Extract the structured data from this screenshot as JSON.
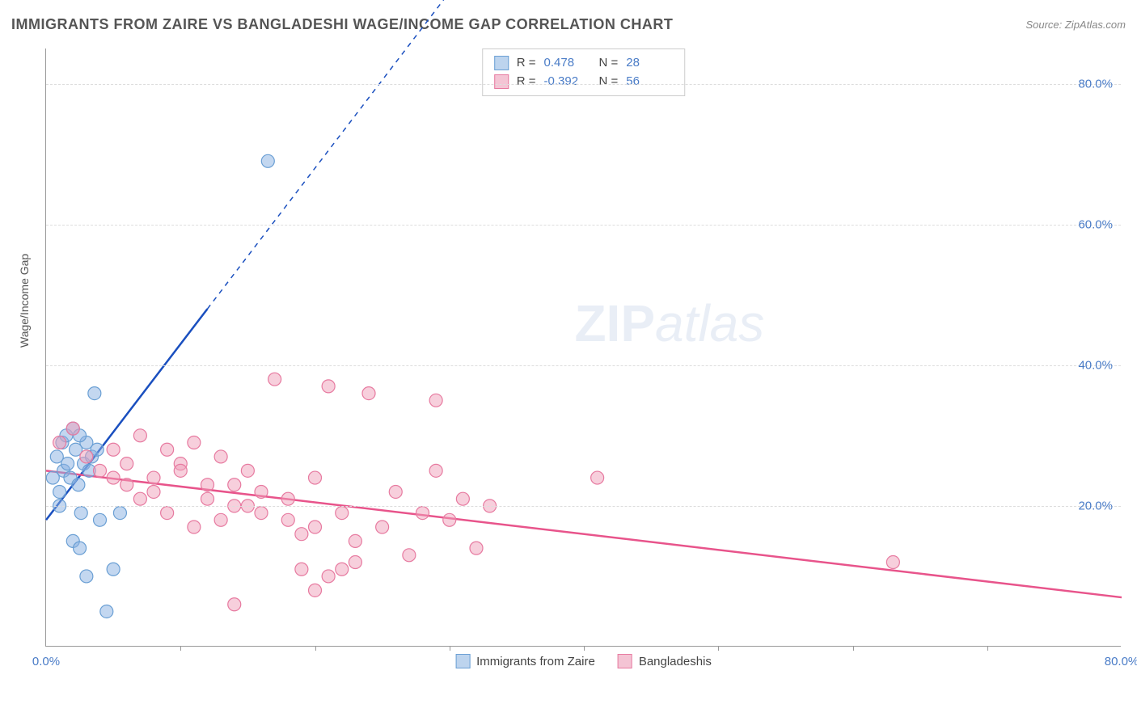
{
  "header": {
    "title": "IMMIGRANTS FROM ZAIRE VS BANGLADESHI WAGE/INCOME GAP CORRELATION CHART",
    "source_prefix": "Source: ",
    "source_name": "ZipAtlas.com"
  },
  "chart": {
    "type": "scatter",
    "ylabel": "Wage/Income Gap",
    "xlim": [
      0,
      80
    ],
    "ylim": [
      0,
      85
    ],
    "y_ticks": [
      20.0,
      40.0,
      60.0,
      80.0
    ],
    "y_tick_labels": [
      "20.0%",
      "40.0%",
      "60.0%",
      "80.0%"
    ],
    "x_ticks": [
      0.0,
      80.0
    ],
    "x_tick_labels": [
      "0.0%",
      "80.0%"
    ],
    "x_tick_marks": [
      10,
      20,
      30,
      40,
      50,
      60,
      70
    ],
    "grid_color": "#dddddd",
    "axis_color": "#999999",
    "background": "#ffffff",
    "watermark": "ZIPatlas",
    "series": [
      {
        "name": "Immigrants from Zaire",
        "color_fill": "rgba(135,175,225,0.5)",
        "color_stroke": "#6a9fd4",
        "swatch_fill": "#bdd4ee",
        "swatch_border": "#6a9fd4",
        "marker_radius": 8,
        "R": "0.478",
        "N": "28",
        "trend": {
          "x1": 0,
          "y1": 18,
          "x2": 12,
          "y2": 48,
          "x2_ext": 30,
          "y2_ext": 93,
          "color": "#1a4fbf",
          "width": 2.5
        },
        "points": [
          [
            0.5,
            24
          ],
          [
            0.8,
            27
          ],
          [
            1.0,
            22
          ],
          [
            1.2,
            29
          ],
          [
            1.3,
            25
          ],
          [
            1.5,
            30
          ],
          [
            1.6,
            26
          ],
          [
            1.8,
            24
          ],
          [
            2.0,
            31
          ],
          [
            2.2,
            28
          ],
          [
            2.4,
            23
          ],
          [
            2.6,
            19
          ],
          [
            2.8,
            26
          ],
          [
            3.0,
            29
          ],
          [
            3.2,
            25
          ],
          [
            3.4,
            27
          ],
          [
            3.6,
            36
          ],
          [
            2.0,
            15
          ],
          [
            3.0,
            10
          ],
          [
            4.0,
            18
          ],
          [
            5.0,
            11
          ],
          [
            4.5,
            5
          ],
          [
            2.5,
            14
          ],
          [
            5.5,
            19
          ],
          [
            1.0,
            20
          ],
          [
            2.5,
            30
          ],
          [
            3.8,
            28
          ],
          [
            16.5,
            69
          ]
        ]
      },
      {
        "name": "Bangladeshis",
        "color_fill": "rgba(240,160,185,0.5)",
        "color_stroke": "#e77aa0",
        "swatch_fill": "#f4c4d4",
        "swatch_border": "#e77aa0",
        "marker_radius": 8,
        "R": "-0.392",
        "N": "56",
        "trend": {
          "x1": 0,
          "y1": 25,
          "x2": 80,
          "y2": 7,
          "color": "#e8548b",
          "width": 2.5
        },
        "points": [
          [
            1,
            29
          ],
          [
            2,
            31
          ],
          [
            3,
            27
          ],
          [
            4,
            25
          ],
          [
            5,
            28
          ],
          [
            6,
            26
          ],
          [
            7,
            30
          ],
          [
            8,
            24
          ],
          [
            9,
            28
          ],
          [
            10,
            26
          ],
          [
            11,
            29
          ],
          [
            12,
            23
          ],
          [
            13,
            27
          ],
          [
            14,
            20
          ],
          [
            15,
            25
          ],
          [
            16,
            22
          ],
          [
            17,
            38
          ],
          [
            18,
            18
          ],
          [
            19,
            16
          ],
          [
            20,
            24
          ],
          [
            21,
            37
          ],
          [
            22,
            19
          ],
          [
            23,
            15
          ],
          [
            24,
            36
          ],
          [
            25,
            17
          ],
          [
            26,
            22
          ],
          [
            27,
            13
          ],
          [
            28,
            19
          ],
          [
            29,
            25
          ],
          [
            30,
            18
          ],
          [
            31,
            21
          ],
          [
            32,
            14
          ],
          [
            33,
            20
          ],
          [
            5,
            24
          ],
          [
            7,
            21
          ],
          [
            9,
            19
          ],
          [
            11,
            17
          ],
          [
            13,
            18
          ],
          [
            15,
            20
          ],
          [
            8,
            22
          ],
          [
            10,
            25
          ],
          [
            12,
            21
          ],
          [
            14,
            23
          ],
          [
            16,
            19
          ],
          [
            18,
            21
          ],
          [
            20,
            17
          ],
          [
            22,
            11
          ],
          [
            20,
            8
          ],
          [
            14,
            6
          ],
          [
            29,
            35
          ],
          [
            19,
            11
          ],
          [
            21,
            10
          ],
          [
            23,
            12
          ],
          [
            41,
            24
          ],
          [
            63,
            12
          ],
          [
            6,
            23
          ]
        ]
      }
    ]
  },
  "legend_bottom": [
    {
      "label": "Immigrants from Zaire",
      "fill": "#bdd4ee",
      "border": "#6a9fd4"
    },
    {
      "label": "Bangladeshis",
      "fill": "#f4c4d4",
      "border": "#e77aa0"
    }
  ]
}
